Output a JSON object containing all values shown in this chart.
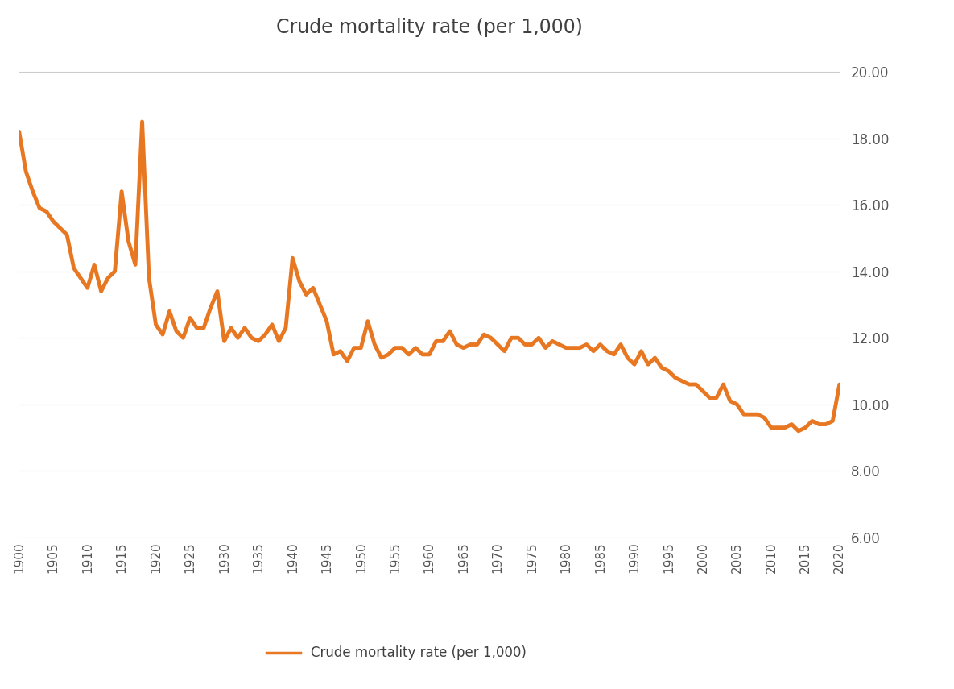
{
  "title": "Crude mortality rate (per 1,000)",
  "legend_label": "Crude mortality rate (per 1,000)",
  "line_color": "#E87722",
  "background_color": "#ffffff",
  "ylim": [
    6.0,
    20.5
  ],
  "yticks": [
    6.0,
    8.0,
    10.0,
    12.0,
    14.0,
    16.0,
    18.0,
    20.0
  ],
  "xtick_years": [
    1900,
    1905,
    1910,
    1915,
    1920,
    1925,
    1930,
    1935,
    1940,
    1945,
    1950,
    1955,
    1960,
    1965,
    1970,
    1975,
    1980,
    1985,
    1990,
    1995,
    2000,
    2005,
    2010,
    2015,
    2020
  ],
  "data": {
    "1900": 18.2,
    "1901": 17.0,
    "1902": 16.4,
    "1903": 15.9,
    "1904": 15.8,
    "1905": 15.5,
    "1906": 15.3,
    "1907": 15.1,
    "1908": 14.1,
    "1909": 13.8,
    "1910": 13.5,
    "1911": 14.2,
    "1912": 13.4,
    "1913": 13.8,
    "1914": 14.0,
    "1915": 16.4,
    "1916": 14.9,
    "1917": 14.2,
    "1918": 18.5,
    "1919": 13.8,
    "1920": 12.4,
    "1921": 12.1,
    "1922": 12.8,
    "1923": 12.2,
    "1924": 12.0,
    "1925": 12.6,
    "1926": 12.3,
    "1927": 12.3,
    "1928": 12.9,
    "1929": 13.4,
    "1930": 11.9,
    "1931": 12.3,
    "1932": 12.0,
    "1933": 12.3,
    "1934": 12.0,
    "1935": 11.9,
    "1936": 12.1,
    "1937": 12.4,
    "1938": 11.9,
    "1939": 12.3,
    "1940": 14.4,
    "1941": 13.7,
    "1942": 13.3,
    "1943": 13.5,
    "1944": 13.0,
    "1945": 12.5,
    "1946": 11.5,
    "1947": 11.6,
    "1948": 11.3,
    "1949": 11.7,
    "1950": 11.7,
    "1951": 12.5,
    "1952": 11.8,
    "1953": 11.4,
    "1954": 11.5,
    "1955": 11.7,
    "1956": 11.7,
    "1957": 11.5,
    "1958": 11.7,
    "1959": 11.5,
    "1960": 11.5,
    "1961": 11.9,
    "1962": 11.9,
    "1963": 12.2,
    "1964": 11.8,
    "1965": 11.7,
    "1966": 11.8,
    "1967": 11.8,
    "1968": 12.1,
    "1969": 12.0,
    "1970": 11.8,
    "1971": 11.6,
    "1972": 12.0,
    "1973": 12.0,
    "1974": 11.8,
    "1975": 11.8,
    "1976": 12.0,
    "1977": 11.7,
    "1978": 11.9,
    "1979": 11.8,
    "1980": 11.7,
    "1981": 11.7,
    "1982": 11.7,
    "1983": 11.8,
    "1984": 11.6,
    "1985": 11.8,
    "1986": 11.6,
    "1987": 11.5,
    "1988": 11.8,
    "1989": 11.4,
    "1990": 11.2,
    "1991": 11.6,
    "1992": 11.2,
    "1993": 11.4,
    "1994": 11.1,
    "1995": 11.0,
    "1996": 10.8,
    "1997": 10.7,
    "1998": 10.6,
    "1999": 10.6,
    "2000": 10.4,
    "2001": 10.2,
    "2002": 10.2,
    "2003": 10.6,
    "2004": 10.1,
    "2005": 10.0,
    "2006": 9.7,
    "2007": 9.7,
    "2008": 9.7,
    "2009": 9.6,
    "2010": 9.3,
    "2011": 9.3,
    "2012": 9.3,
    "2013": 9.4,
    "2014": 9.2,
    "2015": 9.3,
    "2016": 9.5,
    "2017": 9.4,
    "2018": 9.4,
    "2019": 9.5,
    "2020": 10.6
  }
}
